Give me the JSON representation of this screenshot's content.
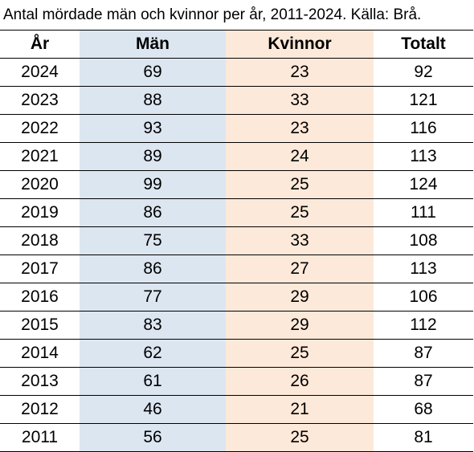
{
  "title": "Antal mördade män och kvinnor per år, 2011-2024. Källa: Brå.",
  "colors": {
    "men_column": "#dce6f1",
    "women_column": "#fde9d9",
    "grid_lines": "#000000"
  },
  "chart_data": {
    "type": "table",
    "title": "Antal mördade män och kvinnor per år, 2011-2024. Källa: Brå.",
    "columns": [
      "År",
      "Män",
      "Kvinnor",
      "Totalt"
    ],
    "rows": [
      [
        "2024",
        "69",
        "23",
        "92"
      ],
      [
        "2023",
        "88",
        "33",
        "121"
      ],
      [
        "2022",
        "93",
        "23",
        "116"
      ],
      [
        "2021",
        "89",
        "24",
        "113"
      ],
      [
        "2020",
        "99",
        "25",
        "124"
      ],
      [
        "2019",
        "86",
        "25",
        "111"
      ],
      [
        "2018",
        "75",
        "33",
        "108"
      ],
      [
        "2017",
        "86",
        "27",
        "113"
      ],
      [
        "2016",
        "77",
        "29",
        "106"
      ],
      [
        "2015",
        "83",
        "29",
        "112"
      ],
      [
        "2014",
        "62",
        "25",
        "87"
      ],
      [
        "2013",
        "61",
        "26",
        "87"
      ],
      [
        "2012",
        "46",
        "21",
        "68"
      ],
      [
        "2011",
        "56",
        "25",
        "81"
      ]
    ]
  }
}
